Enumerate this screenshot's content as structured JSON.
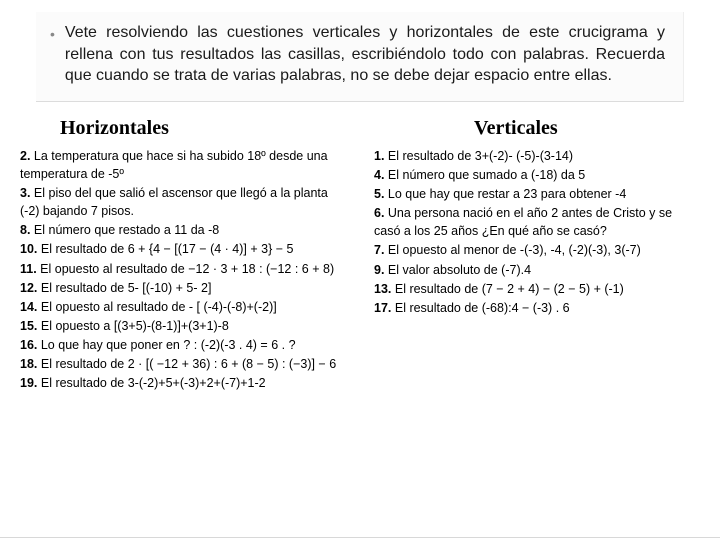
{
  "background_color": "#ffffff",
  "instruction": {
    "bullet_glyph": "•",
    "text": "Vete resolviendo las cuestiones verticales y horizontales de este crucigrama y rellena con tus resultados las casillas, escribiéndolo todo con palabras. Recuerda que cuando se trata de varias palabras, no se debe dejar espacio entre ellas.",
    "box_bg": "#fbfbfb",
    "border_color": "#dcdcdc",
    "font_size": 16,
    "text_color": "#1a1a1a"
  },
  "columns": {
    "left": {
      "title": "Horizontales",
      "title_font": "Times New Roman",
      "title_size": 20,
      "clues": [
        {
          "n": "2.",
          "t": "La temperatura que hace si ha subido 18º desde una temperatura de -5º"
        },
        {
          "n": "3.",
          "t": "El piso del que salió el ascensor que llegó a la planta (-2) bajando 7 pisos."
        },
        {
          "n": "8.",
          "t": "El número que restado a 11 da -8"
        },
        {
          "n": "10.",
          "t": "El resultado de 6 + {4 − [(17 − (4 · 4)] + 3} − 5"
        },
        {
          "n": "11.",
          "t": "El opuesto al resultado de −12 · 3 + 18 : (−12 : 6 + 8)"
        },
        {
          "n": "12.",
          "t": "El resultado de 5- [(-10) + 5- 2]"
        },
        {
          "n": "14.",
          "t": "El opuesto al resultado de - [ (-4)-(-8)+(-2)]"
        },
        {
          "n": "15.",
          "t": "El opuesto a [(3+5)-(8-1)]+(3+1)-8"
        },
        {
          "n": "16.",
          "t": "Lo que hay que poner en ? : (-2)(-3 . 4) = 6 . ?"
        },
        {
          "n": "18.",
          "t": "El resultado de 2 · [( −12 + 36) : 6 + (8 − 5) : (−3)] − 6"
        },
        {
          "n": "19.",
          "t": "El resultado de 3-(-2)+5+(-3)+2+(-7)+1-2"
        }
      ]
    },
    "right": {
      "title": "Verticales",
      "title_font": "Times New Roman",
      "title_size": 20,
      "clues": [
        {
          "n": "1.",
          "t": "El resultado de 3+(-2)- (-5)-(3-14)"
        },
        {
          "n": "4.",
          "t": "El número que sumado a (-18) da 5"
        },
        {
          "n": "5.",
          "t": "Lo que hay que restar a 23 para obtener -4"
        },
        {
          "n": "6.",
          "t": "Una persona nació en el año 2 antes de Cristo y se casó a los 25 años ¿En qué año se casó?"
        },
        {
          "n": "7.",
          "t": "El opuesto al menor de -(-3), -4, (-2)(-3), 3(-7)"
        },
        {
          "n": "9.",
          "t": "El valor absoluto de (-7).4"
        },
        {
          "n": "13.",
          "t": "El resultado de (7 − 2 + 4) − (2 − 5) + (-1)"
        },
        {
          "n": "17.",
          "t": "El resultado de (-68):4 − (-3) . 6"
        }
      ]
    }
  },
  "clue_style": {
    "font_size": 12.5,
    "line_height": 1.45,
    "num_weight": "bold",
    "text_color": "#000000"
  }
}
